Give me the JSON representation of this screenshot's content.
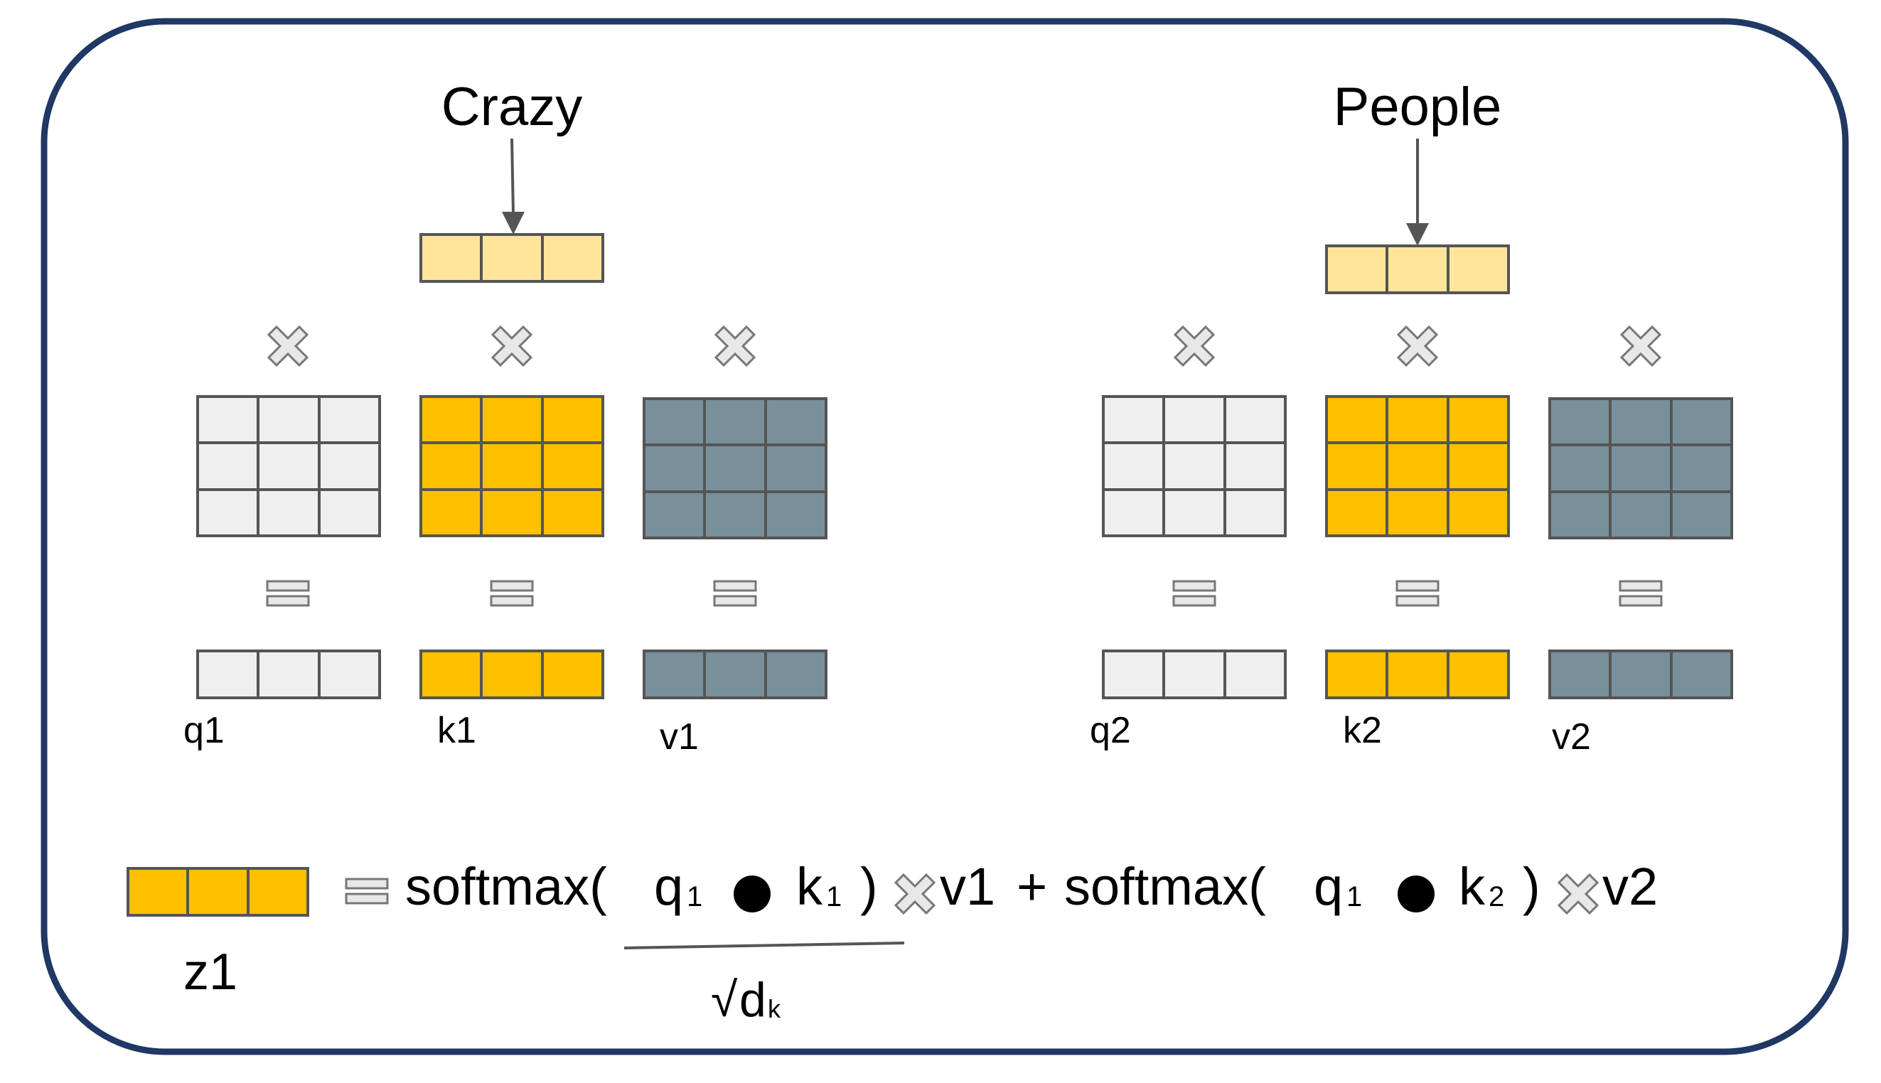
{
  "words": [
    {
      "text": "Crazy"
    },
    {
      "text": "People"
    }
  ],
  "vector_labels": [
    {
      "text": "q1"
    },
    {
      "text": "k1"
    },
    {
      "text": "v1"
    },
    {
      "text": "q2"
    },
    {
      "text": "k2"
    },
    {
      "text": "v2"
    }
  ],
  "equation": {
    "result_label": "z1",
    "softmax_1": "softmax(",
    "q_1a": "q",
    "q_1a_sub": "1",
    "k_1a": "k",
    "k_1a_sub": "1",
    "close_1": ")",
    "v_1": "v1",
    "plus": "+",
    "softmax_2": "softmax(",
    "q_1b": "q",
    "q_1b_sub": "1",
    "k_2": "k",
    "k_2_sub": "2",
    "close_2": ")",
    "v_2": "v2",
    "sqrt_sign": "√",
    "denominator": "d",
    "denominator_sub": "k"
  },
  "colors": {
    "frame": "#1f3864",
    "embedding": "#ffe599",
    "query": "#efefef",
    "key": "#ffc000",
    "value": "#78909c",
    "grid_line": "#555555",
    "arrow": "#555555",
    "operator_fill": "#e8e8e8",
    "operator_stroke": "#777777"
  },
  "icons": [
    "multiply-icon",
    "equals-icon",
    "dot-product-icon",
    "arrow-down-icon"
  ]
}
